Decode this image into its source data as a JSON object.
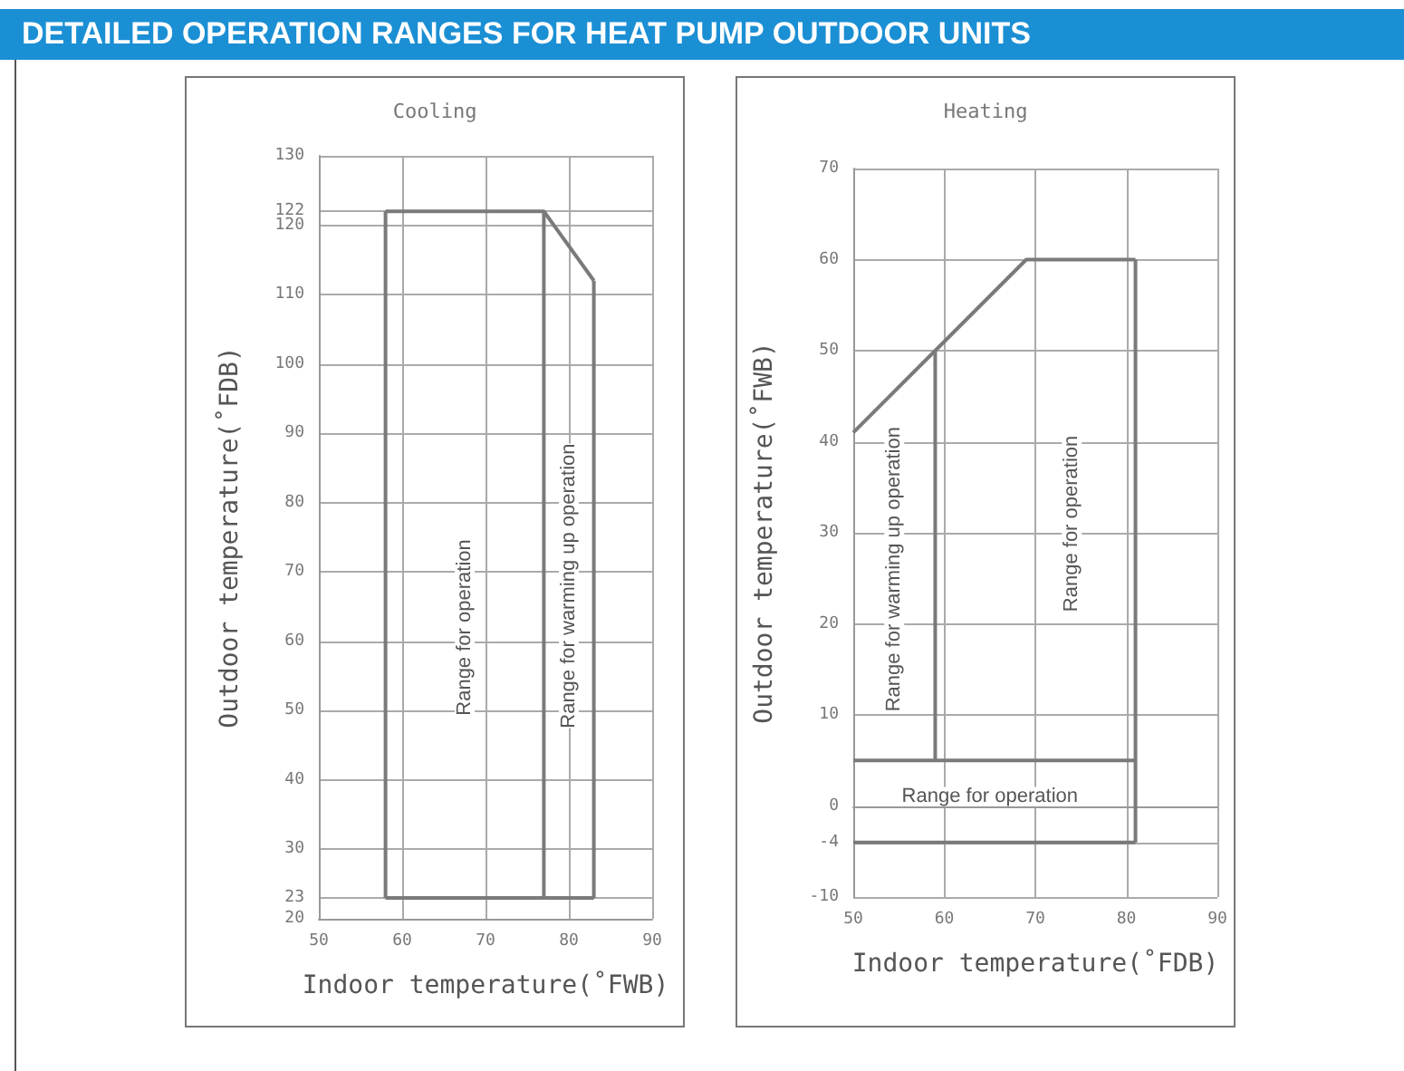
{
  "chart_data": [
    {
      "type": "line",
      "title": "DETAILED OPERATION RANGES FOR HEAT PUMP OUTDOOR UNITS",
      "subtitle": "Cooling",
      "xlabel": "Indoor temperature(˚FWB)",
      "ylabel": "Outdoor temperature(˚FDB)",
      "xlim": [
        50,
        90
      ],
      "xticks": [
        50,
        60,
        70,
        80,
        90
      ],
      "ylim": [
        20,
        130
      ],
      "yticks": [
        20,
        23,
        30,
        40,
        50,
        60,
        70,
        80,
        90,
        100,
        110,
        120,
        122,
        130
      ],
      "grid": true,
      "marker": "none",
      "line_style": "solid",
      "series": [
        {
          "color": "#7a7a7a",
          "x": [
            58,
            77,
            83
          ],
          "values": [
            122,
            122,
            112
          ]
        },
        {
          "color": "#7a7a7a",
          "x": [
            58,
            77,
            83
          ],
          "values": [
            23,
            23,
            23
          ]
        },
        {
          "color": "#7a7a7a",
          "x": [
            58,
            58
          ],
          "values": [
            23,
            122
          ]
        },
        {
          "color": "#7a7a7a",
          "x": [
            77,
            77
          ],
          "values": [
            23,
            122
          ]
        },
        {
          "color": "#7a7a7a",
          "x": [
            83,
            83
          ],
          "values": [
            23,
            112
          ]
        }
      ],
      "annotations": [
        "Range for operation",
        "Range for warming up operation"
      ]
    },
    {
      "type": "line",
      "subtitle": "Heating",
      "xlabel": "Indoor temperature(˚FDB)",
      "ylabel": "Outdoor temperature(˚FWB)",
      "xlim": [
        50,
        90
      ],
      "xticks": [
        50,
        60,
        70,
        80,
        90
      ],
      "ylim": [
        -10,
        70
      ],
      "yticks": [
        -10,
        -4,
        0,
        10,
        20,
        30,
        40,
        50,
        60,
        70
      ],
      "grid": true,
      "marker": "none",
      "line_style": "solid",
      "series": [
        {
          "color": "#7a7a7a",
          "x": [
            50,
            59,
            69,
            81
          ],
          "values": [
            41,
            50,
            60,
            60
          ]
        },
        {
          "color": "#7a7a7a",
          "x": [
            50,
            59,
            81
          ],
          "values": [
            5,
            5,
            5
          ]
        },
        {
          "color": "#7a7a7a",
          "x": [
            50,
            81
          ],
          "values": [
            -4,
            -4
          ]
        },
        {
          "color": "#7a7a7a",
          "x": [
            59,
            59
          ],
          "values": [
            5,
            50
          ]
        },
        {
          "color": "#7a7a7a",
          "x": [
            81,
            81
          ],
          "values": [
            -4,
            60
          ]
        }
      ],
      "annotations": [
        "Range for warming up operation",
        "Range for operation",
        "Range for operation"
      ]
    }
  ]
}
